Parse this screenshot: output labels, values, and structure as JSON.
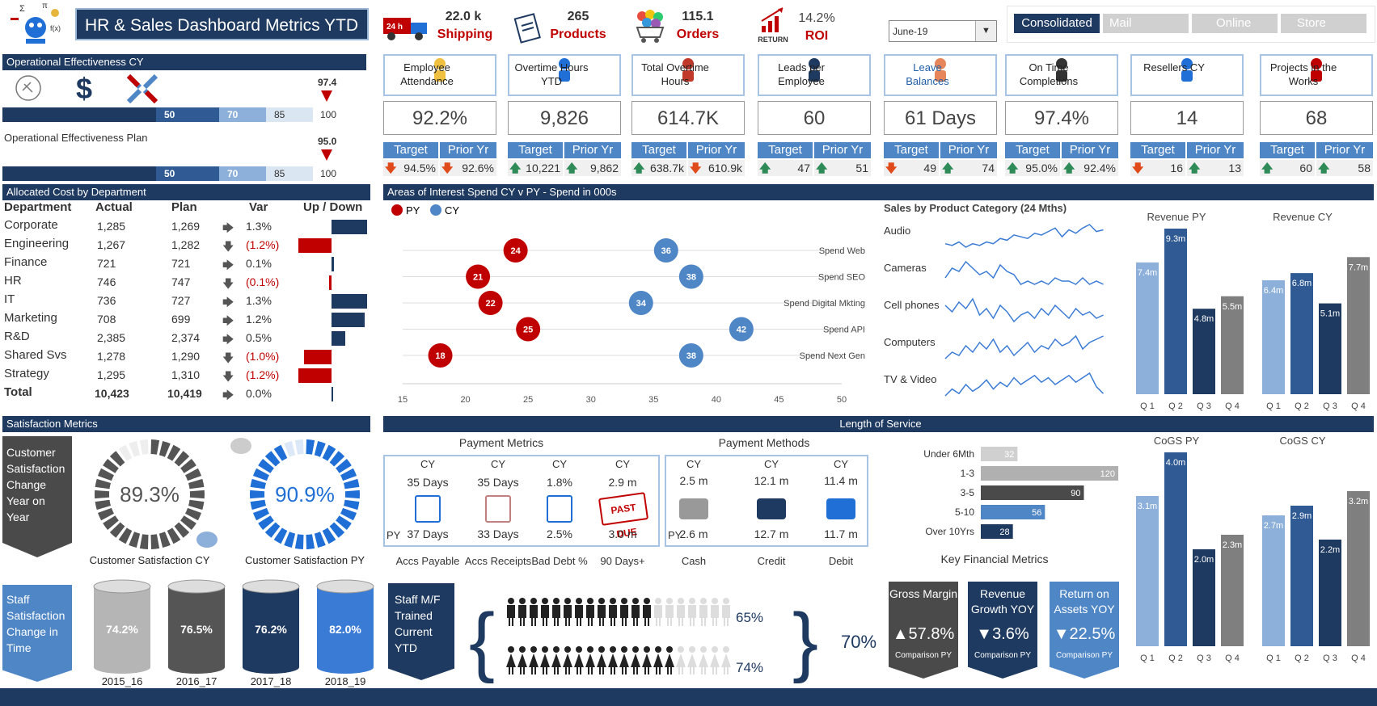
{
  "header": {
    "title": "HR & Sales Dashboard Metrics YTD",
    "icons": [
      "math-icon",
      "shipping-truck-icon",
      "clipboard-icon",
      "cart-icon",
      "roi-chart-icon"
    ],
    "kpis": [
      {
        "value": "22.0 k",
        "label": "Shipping"
      },
      {
        "value": "265",
        "label": "Products"
      },
      {
        "value": "115.1",
        "label": "Orders"
      },
      {
        "value": "14.2%",
        "label": "ROI"
      }
    ],
    "roi_return": "RETURN",
    "month_select": "June-19",
    "tabs": [
      "Consolidated",
      "Mail",
      "Online",
      "Store"
    ],
    "active_tab": "Consolidated"
  },
  "op_eff": {
    "cy_title": "Operational Effectiveness CY",
    "plan_title": "Operational Effectiveness Plan",
    "cy_marker": "97.4",
    "plan_marker": "95.0",
    "bands": [
      "50",
      "70",
      "85",
      "100"
    ]
  },
  "cards": [
    {
      "title": "Employee Attendance",
      "value": "92.2%",
      "target": "94.5%",
      "prior": "92.6%",
      "t_dir": "down",
      "p_dir": "down"
    },
    {
      "title": "Overtime Hours YTD",
      "value": "9,826",
      "target": "10,221",
      "prior": "9,862",
      "t_dir": "up",
      "p_dir": "up"
    },
    {
      "title": "Total Overtime Hours",
      "value": "614.7K",
      "target": "638.7k",
      "prior": "610.9k",
      "t_dir": "up",
      "p_dir": "down"
    },
    {
      "title": "Leads per Employee",
      "value": "60",
      "target": "47",
      "prior": "51",
      "t_dir": "up",
      "p_dir": "up"
    },
    {
      "title": "Leave Balances",
      "value": "61 Days",
      "target": "49",
      "prior": "74",
      "t_dir": "down",
      "p_dir": "up"
    },
    {
      "title": "On Time Completions",
      "value": "97.4%",
      "target": "95.0%",
      "prior": "92.4%",
      "t_dir": "up",
      "p_dir": "up"
    },
    {
      "title": "Resellers CY",
      "value": "14",
      "target": "16",
      "prior": "13",
      "t_dir": "down",
      "p_dir": "up"
    },
    {
      "title": "Projects in the Works",
      "value": "68",
      "target": "60",
      "prior": "58",
      "t_dir": "up",
      "p_dir": "up"
    }
  ],
  "target_label": "Target",
  "prior_label": "Prior Yr",
  "alloc": {
    "title": "Allocated Cost by Department",
    "headers": [
      "Department",
      "Actual",
      "Plan",
      "Var",
      "Up / Down"
    ],
    "rows": [
      {
        "dept": "Corporate",
        "actual": "1,285",
        "plan": "1,269",
        "var": "1.3%",
        "neg": false,
        "bar": 1.3
      },
      {
        "dept": "Engineering",
        "actual": "1,267",
        "plan": "1,282",
        "var": "(1.2%)",
        "neg": true,
        "bar": -1.2
      },
      {
        "dept": "Finance",
        "actual": "721",
        "plan": "721",
        "var": "0.1%",
        "neg": false,
        "bar": 0.1
      },
      {
        "dept": "HR",
        "actual": "746",
        "plan": "747",
        "var": "(0.1%)",
        "neg": true,
        "bar": -0.1
      },
      {
        "dept": "IT",
        "actual": "736",
        "plan": "727",
        "var": "1.3%",
        "neg": false,
        "bar": 1.3
      },
      {
        "dept": "Marketing",
        "actual": "708",
        "plan": "699",
        "var": "1.2%",
        "neg": false,
        "bar": 1.2
      },
      {
        "dept": "R&D",
        "actual": "2,385",
        "plan": "2,374",
        "var": "0.5%",
        "neg": false,
        "bar": 0.5
      },
      {
        "dept": "Shared Svs",
        "actual": "1,278",
        "plan": "1,290",
        "var": "(1.0%)",
        "neg": true,
        "bar": -1.0
      },
      {
        "dept": "Strategy",
        "actual": "1,295",
        "plan": "1,310",
        "var": "(1.2%)",
        "neg": true,
        "bar": -1.2
      }
    ],
    "total": {
      "dept": "Total",
      "actual": "10,423",
      "plan": "10,419",
      "var": "0.0%"
    }
  },
  "areas": {
    "title": "Areas of Interest Spend CY v PY - Spend in 000s",
    "legend": [
      "PY",
      "CY"
    ],
    "rows": [
      {
        "label": "Spend Web",
        "py": 24,
        "cy": 36
      },
      {
        "label": "Spend SEO",
        "py": 21,
        "cy": 38
      },
      {
        "label": "Spend Digital Mkting",
        "py": 22,
        "cy": 34
      },
      {
        "label": "Spend API",
        "py": 25,
        "cy": 42
      },
      {
        "label": "Spend Next Gen",
        "py": 18,
        "cy": 38
      }
    ],
    "xticks": [
      "15",
      "20",
      "25",
      "30",
      "35",
      "40",
      "45",
      "50"
    ]
  },
  "sales_cat": {
    "title": "Sales by Product Category (24 Mths)",
    "cats": [
      "Audio",
      "Cameras",
      "Cell phones",
      "Computers",
      "TV & Video"
    ]
  },
  "rev": {
    "py_title": "Revenue PY",
    "cy_title": "Revenue CY",
    "quarters": [
      "Q 1",
      "Q 2",
      "Q 3",
      "Q 4"
    ],
    "py": [
      {
        "v": 7.4,
        "l": "7.4m"
      },
      {
        "v": 9.3,
        "l": "9.3m"
      },
      {
        "v": 4.8,
        "l": "4.8m"
      },
      {
        "v": 5.5,
        "l": "5.5m"
      }
    ],
    "cy": [
      {
        "v": 6.4,
        "l": "6.4m"
      },
      {
        "v": 6.8,
        "l": "6.8m"
      },
      {
        "v": 5.1,
        "l": "5.1m"
      },
      {
        "v": 7.7,
        "l": "7.7m"
      }
    ]
  },
  "cogs": {
    "py_title": "CoGS PY",
    "cy_title": "CoGS CY",
    "py": [
      {
        "v": 3.1,
        "l": "3.1m"
      },
      {
        "v": 4.0,
        "l": "4.0m"
      },
      {
        "v": 2.0,
        "l": "2.0m"
      },
      {
        "v": 2.3,
        "l": "2.3m"
      }
    ],
    "cy": [
      {
        "v": 2.7,
        "l": "2.7m"
      },
      {
        "v": 2.9,
        "l": "2.9m"
      },
      {
        "v": 2.2,
        "l": "2.2m"
      },
      {
        "v": 3.2,
        "l": "3.2m"
      }
    ]
  },
  "satisfaction": {
    "title": "Satisfaction Metrics",
    "change_label": "Customer Satisfaction Change Year on Year",
    "cy_value": "89.3%",
    "cy_label": "Customer Satisfaction CY",
    "py_value": "90.9%",
    "py_label": "Customer Satisfaction PY",
    "staff_label": "Staff Satisfaction Change in Time",
    "cylinders": [
      {
        "value": "74.2%",
        "year": "2015_16",
        "color": "#b5b5b5"
      },
      {
        "value": "76.5%",
        "year": "2016_17",
        "color": "#555"
      },
      {
        "value": "76.2%",
        "year": "2017_18",
        "color": "#1f3a60"
      },
      {
        "value": "82.0%",
        "year": "2018_19",
        "color": "#3a7bd5"
      }
    ]
  },
  "los": {
    "title": "Length of Service",
    "rows": [
      {
        "label": "Under 6Mth",
        "v": 32
      },
      {
        "label": "1-3",
        "v": 120
      },
      {
        "label": "3-5",
        "v": 90
      },
      {
        "label": "5-10",
        "v": 56
      },
      {
        "label": "Over 10Yrs",
        "v": 28
      }
    ]
  },
  "payment": {
    "metrics_title": "Payment Metrics",
    "methods_title": "Payment Methods",
    "cy": "CY",
    "py": "PY",
    "metrics": [
      {
        "cy": "35 Days",
        "py": "37 Days",
        "label": "Accs Payable"
      },
      {
        "cy": "35 Days",
        "py": "33 Days",
        "label": "Accs Receipts"
      },
      {
        "cy": "1.8%",
        "py": "2.5%",
        "label": "Bad Debt %"
      },
      {
        "cy": "2.9 m",
        "py": "3.0 m",
        "label": "90 Days+"
      }
    ],
    "methods": [
      {
        "cy": "2.5 m",
        "py": "2.6 m",
        "label": "Cash"
      },
      {
        "cy": "12.1 m",
        "py": "12.7 m",
        "label": "Credit"
      },
      {
        "cy": "11.4 m",
        "py": "11.7 m",
        "label": "Debit"
      }
    ],
    "past_due": "PAST DUE"
  },
  "staff_trained": {
    "label": "Staff M/F Trained Current YTD",
    "male": "65%",
    "female": "74%",
    "total": "70%",
    "male_frac": 0.65,
    "female_frac": 0.74
  },
  "kfm": {
    "title": "Key Financial Metrics",
    "items": [
      {
        "title": "Gross Margin",
        "value": "▲57.8%",
        "sub": "Comparison PY",
        "color": "#4a4a4a"
      },
      {
        "title": "Revenue Growth YOY",
        "value": "▼3.6%",
        "sub": "Comparison PY",
        "color": "#1f3a60"
      },
      {
        "title": "Return on Assets YOY",
        "value": "▼22.5%",
        "sub": "Comparison PY",
        "color": "#4f86c6"
      }
    ]
  },
  "colors": {
    "navy": "#1f3a60",
    "blue": "#4f86c6",
    "red": "#c00000",
    "grey": "#7f7f7f"
  }
}
